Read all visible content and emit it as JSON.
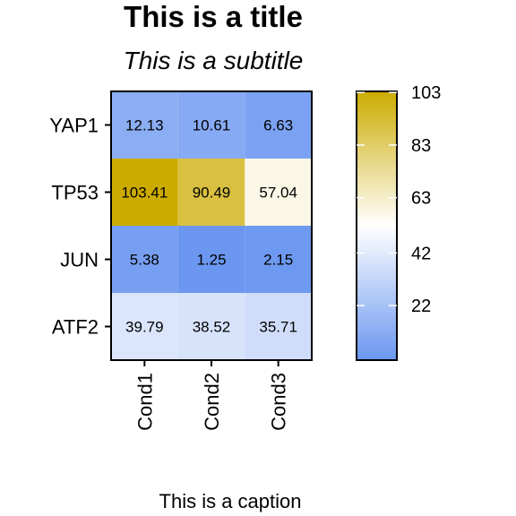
{
  "chart_data": {
    "type": "heatmap",
    "title": "This is a title",
    "subtitle": "This is a subtitle",
    "caption": "This is a caption",
    "rows": [
      "YAP1",
      "TP53",
      "JUN",
      "ATF2"
    ],
    "columns": [
      "Cond1",
      "Cond2",
      "Cond3"
    ],
    "values": [
      [
        12.13,
        10.61,
        6.63
      ],
      [
        103.41,
        90.49,
        57.04
      ],
      [
        5.38,
        1.25,
        2.15
      ],
      [
        39.79,
        38.52,
        35.71
      ]
    ],
    "value_labels": [
      [
        "12.13",
        "10.61",
        "6.63"
      ],
      [
        "103.41",
        "90.49",
        "57.04"
      ],
      [
        "5.38",
        "1.25",
        "2.15"
      ],
      [
        "39.79",
        "38.52",
        "35.71"
      ]
    ],
    "legend": {
      "position": "right",
      "range": [
        1.25,
        103.41
      ],
      "ticks": [
        22,
        42,
        63,
        83,
        103
      ],
      "tick_labels": [
        "22",
        "42",
        "63",
        "83",
        "103"
      ],
      "colors": {
        "low": "#6b97f0",
        "mid": "#ffffff",
        "high": "#ccab00"
      }
    }
  }
}
